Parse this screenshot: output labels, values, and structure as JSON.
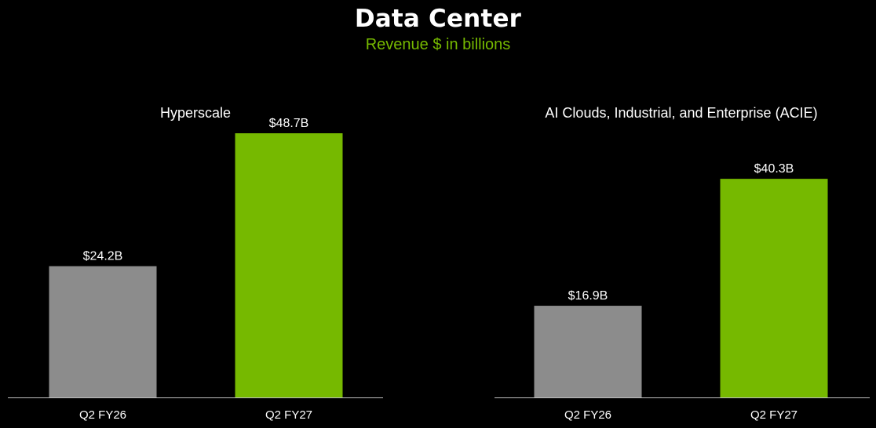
{
  "header": {
    "title": "Data Center",
    "subtitle": "Revenue $ in billions"
  },
  "chart_data": [
    {
      "type": "bar",
      "title": "Hyperscale",
      "categories": [
        "Q2 FY26",
        "Q2 FY27"
      ],
      "values": [
        24.2,
        48.7
      ],
      "data_labels": [
        "$24.2B",
        "$48.7B"
      ],
      "colors": [
        "#8c8c8c",
        "#76b900"
      ],
      "xlabel": "",
      "ylabel": "",
      "grid": false,
      "ylim": [
        0,
        48.7
      ]
    },
    {
      "type": "bar",
      "title": "AI Clouds, Industrial, and Enterprise (ACIE)",
      "categories": [
        "Q2 FY26",
        "Q2 FY27"
      ],
      "values": [
        16.9,
        40.3
      ],
      "data_labels": [
        "$16.9B",
        "$40.3B"
      ],
      "colors": [
        "#8c8c8c",
        "#76b900"
      ],
      "xlabel": "",
      "ylabel": "",
      "grid": false,
      "ylim": [
        0,
        48.7
      ]
    }
  ],
  "colors": {
    "background": "#000000",
    "accent": "#76b900",
    "prior_period": "#8c8c8c",
    "axis": "#bfbfbf"
  }
}
